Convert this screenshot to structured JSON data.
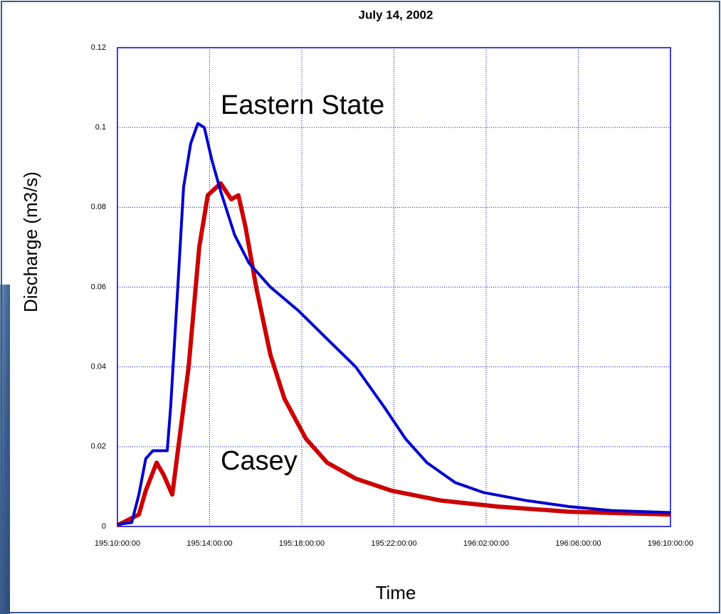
{
  "chart_data": {
    "type": "line",
    "title": "July 14, 2002",
    "x_label": "Time",
    "y_label": "Discharge (m3/s)",
    "xlim": [
      10,
      34
    ],
    "xticks": [
      {
        "value": 10,
        "label": "195:10:00:00"
      },
      {
        "value": 14,
        "label": "195:14:00:00"
      },
      {
        "value": 18,
        "label": "195:18:00:00"
      },
      {
        "value": 22,
        "label": "195:22:00:00"
      },
      {
        "value": 26,
        "label": "196:02:00:00"
      },
      {
        "value": 30,
        "label": "196:06:00:00"
      },
      {
        "value": 34,
        "label": "196:10:00:00"
      }
    ],
    "ylim": [
      0,
      0.12
    ],
    "yticks": [
      0,
      0.02,
      0.04,
      0.06,
      0.08,
      0.1,
      0.12
    ],
    "grid": true,
    "series": [
      {
        "name": "Eastern State",
        "color": "#0000cc",
        "x": [
          10,
          10.62,
          10.93,
          11.23,
          11.54,
          12.16,
          12.31,
          12.62,
          12.87,
          13.18,
          13.49,
          13.77,
          14.09,
          14.48,
          15.09,
          15.71,
          16.64,
          17.87,
          19.1,
          20.34,
          21.57,
          22.5,
          23.43,
          24.66,
          25.9,
          27.75,
          29.6,
          31.45,
          34
        ],
        "values": [
          0.0005,
          0.001,
          0.008,
          0.017,
          0.019,
          0.019,
          0.03,
          0.06,
          0.085,
          0.096,
          0.101,
          0.1,
          0.092,
          0.084,
          0.073,
          0.066,
          0.06,
          0.054,
          0.047,
          0.04,
          0.03,
          0.022,
          0.016,
          0.011,
          0.0085,
          0.0065,
          0.005,
          0.004,
          0.0035
        ]
      },
      {
        "name": "Casey",
        "color": "#cc0000",
        "x": [
          10,
          10.93,
          11.23,
          11.7,
          12.0,
          12.38,
          12.69,
          13.09,
          13.55,
          13.92,
          14.48,
          14.94,
          15.25,
          15.56,
          16.02,
          16.64,
          17.25,
          18.18,
          19.1,
          20.34,
          21.88,
          24.04,
          26.5,
          29.6,
          34
        ],
        "values": [
          0.0003,
          0.003,
          0.009,
          0.016,
          0.013,
          0.008,
          0.022,
          0.04,
          0.07,
          0.083,
          0.086,
          0.082,
          0.083,
          0.075,
          0.06,
          0.043,
          0.032,
          0.022,
          0.016,
          0.012,
          0.009,
          0.0065,
          0.005,
          0.0037,
          0.003
        ]
      }
    ]
  }
}
